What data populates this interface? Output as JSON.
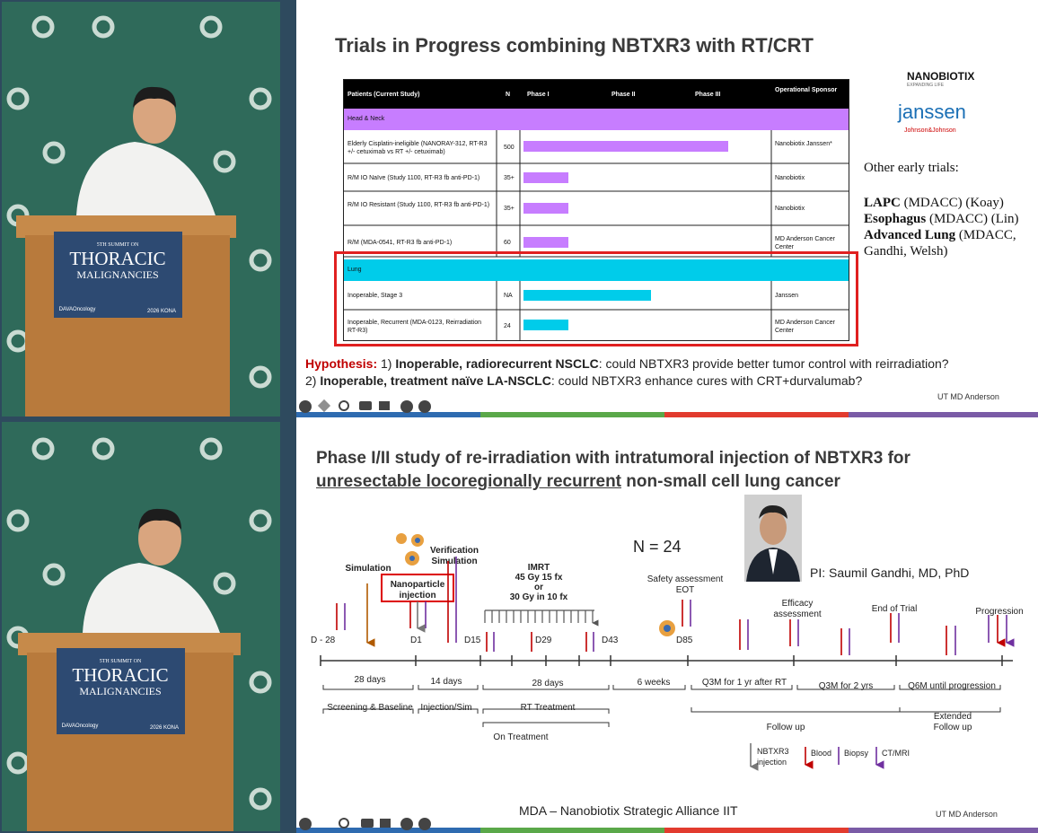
{
  "speaker_video": {
    "sign": {
      "edition": "5TH SUMMIT ON",
      "line1": "THORACIC",
      "line2": "MALIGNANCIES",
      "sponsor": "DAVAOncology",
      "location": "2026 KONA"
    }
  },
  "slide_1": {
    "title": "Trials in Progress combining NBTXR3 with RT/CRT",
    "table": {
      "headers": [
        "Patients (Current Study)",
        "N",
        "Phase I",
        "Phase II",
        "Phase III",
        "Operational Sponsor"
      ],
      "sections": [
        {
          "name": "Head & Neck",
          "rows": [
            [
              "Elderly Cisplatin-ineligible (NANORAY-312, RT-R3 +/- cetuximab vs RT +/- cetuximab)",
              "500",
              "Nanobiotix Janssen*"
            ],
            [
              "R/M IO Naïve (Study 1100, RT-R3 fb anti-PD-1)",
              "35+",
              "Nanobiotix"
            ],
            [
              "R/M IO Resistant (Study 1100, RT-R3 fb anti-PD-1)",
              "35+",
              "Nanobiotix"
            ],
            [
              "R/M (MDA-0541, RT-R3 fb anti-PD-1)",
              "60",
              "MD Anderson Cancer Center"
            ]
          ]
        },
        {
          "name": "Lung",
          "rows": [
            [
              "Inoperable, Stage 3",
              "NA",
              "Janssen"
            ],
            [
              "Inoperable, Recurrent (MDA-0123, Reirradiation RT-R3)",
              "24",
              "MD Anderson Cancer Center"
            ]
          ]
        }
      ]
    },
    "logos": {
      "nanobiotix": "NANOBIOTIX",
      "nanobiotix_tagline": "EXPANDING LIFE",
      "janssen": "janssen",
      "janssen_parent": "Johnson&Johnson"
    },
    "other_trials": {
      "heading": "Other early trials:",
      "items": [
        {
          "name": "LAPC",
          "detail": " (MDACC) (Koay)"
        },
        {
          "name": "Esophagus",
          "detail": " (MDACC) (Lin)"
        },
        {
          "name": "Advanced Lung",
          "detail": " (MDACC, Gandhi, Welsh)"
        }
      ]
    },
    "hypothesis": {
      "label": "Hypothesis:",
      "items": [
        {
          "num": "1)",
          "subject": "Inoperable, radiorecurrent NSCLC",
          "question": ": could NBTXR3 provide better tumor control with reirradiation?"
        },
        {
          "num": "2)",
          "subject": "Inoperable, treatment naïve LA-NSCLC",
          "question": ": could NBTXR3 enhance cures with CRT+durvalumab?"
        }
      ]
    },
    "footer": "UT MD Anderson"
  },
  "slide_2": {
    "title_line1": "Phase I/II study of re-irradiation with intratumoral injection of NBTXR3 for",
    "title_underlined": "unresectable locoregionally recurrent",
    "title_rest": " non-small cell lung cancer",
    "n": "N = 24",
    "pi": "PI: Saumil Gandhi, MD, PhD",
    "events": {
      "simulation": "Simulation",
      "nanoparticle": [
        "Nanoparticle",
        "injection"
      ],
      "verification": [
        "Verification",
        "Simulation"
      ],
      "imrt": [
        "IMRT",
        "45 Gy  15 fx",
        "or",
        "30 Gy in 10 fx"
      ],
      "safety": [
        "Safety assessment",
        "EOT"
      ],
      "efficacy": [
        "Efficacy",
        "assessment"
      ],
      "end": "End of Trial",
      "progression": "Progression"
    },
    "days": [
      "D - 28",
      "D1",
      "D15",
      "D29",
      "D43",
      "D85"
    ],
    "intervals": [
      "28 days",
      "14 days",
      "28 days",
      "6 weeks",
      "Q3M for 1 yr after RT",
      "Q3M for 2 yrs",
      "Q6M until progression"
    ],
    "phases": [
      "Screening & Baseline",
      "Injection/Sim",
      "RT Treatment",
      "On Treatment",
      "Follow up",
      [
        "Extended",
        "Follow up"
      ]
    ],
    "legend": [
      [
        "NBTXR3",
        "injection"
      ],
      "Blood",
      "Biopsy",
      "CT/MRI"
    ],
    "footer_center": "MDA – Nanobiotix Strategic Alliance IIT",
    "footer": "UT MD Anderson"
  }
}
